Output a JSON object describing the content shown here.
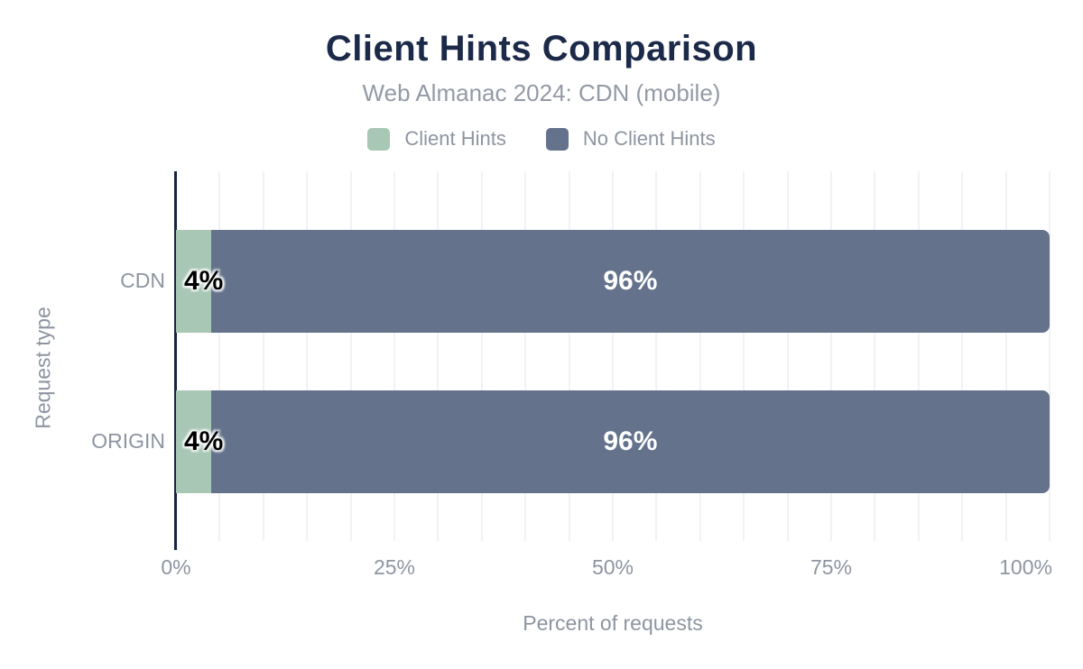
{
  "page": {
    "background": "#ffffff"
  },
  "chart_data": {
    "type": "bar",
    "orientation": "horizontal",
    "stacked": true,
    "title": "Client Hints Comparison",
    "subtitle": "Web Almanac 2024: CDN (mobile)",
    "xlabel": "Percent of requests",
    "ylabel": "Request type",
    "categories": [
      "CDN",
      "ORIGIN"
    ],
    "series": [
      {
        "name": "Client Hints",
        "color": "#a8c7b4",
        "values": [
          4,
          4
        ],
        "value_label_color": "#000000",
        "value_label_outlined": true,
        "value_label_align": "start"
      },
      {
        "name": "No Client Hints",
        "color": "#64728c",
        "values": [
          96,
          96
        ],
        "value_label_color": "#ffffff",
        "value_label_outlined": false,
        "value_label_align": "center"
      }
    ],
    "value_suffix": "%",
    "xlim": [
      0,
      100
    ],
    "x_ticks": [
      {
        "value": 0,
        "label": "0%"
      },
      {
        "value": 25,
        "label": "25%"
      },
      {
        "value": 50,
        "label": "50%"
      },
      {
        "value": 75,
        "label": "75%"
      },
      {
        "value": 100,
        "label": "100%",
        "align": "end"
      }
    ],
    "grid": {
      "minor_step": 5,
      "color": "#f1f2f4",
      "visible": true
    },
    "legend_position": "top",
    "colors": {
      "title": "#1c2a49",
      "subtitle": "#949aa5",
      "axis_line": "#172441",
      "text_muted": "#8e95a1"
    }
  }
}
